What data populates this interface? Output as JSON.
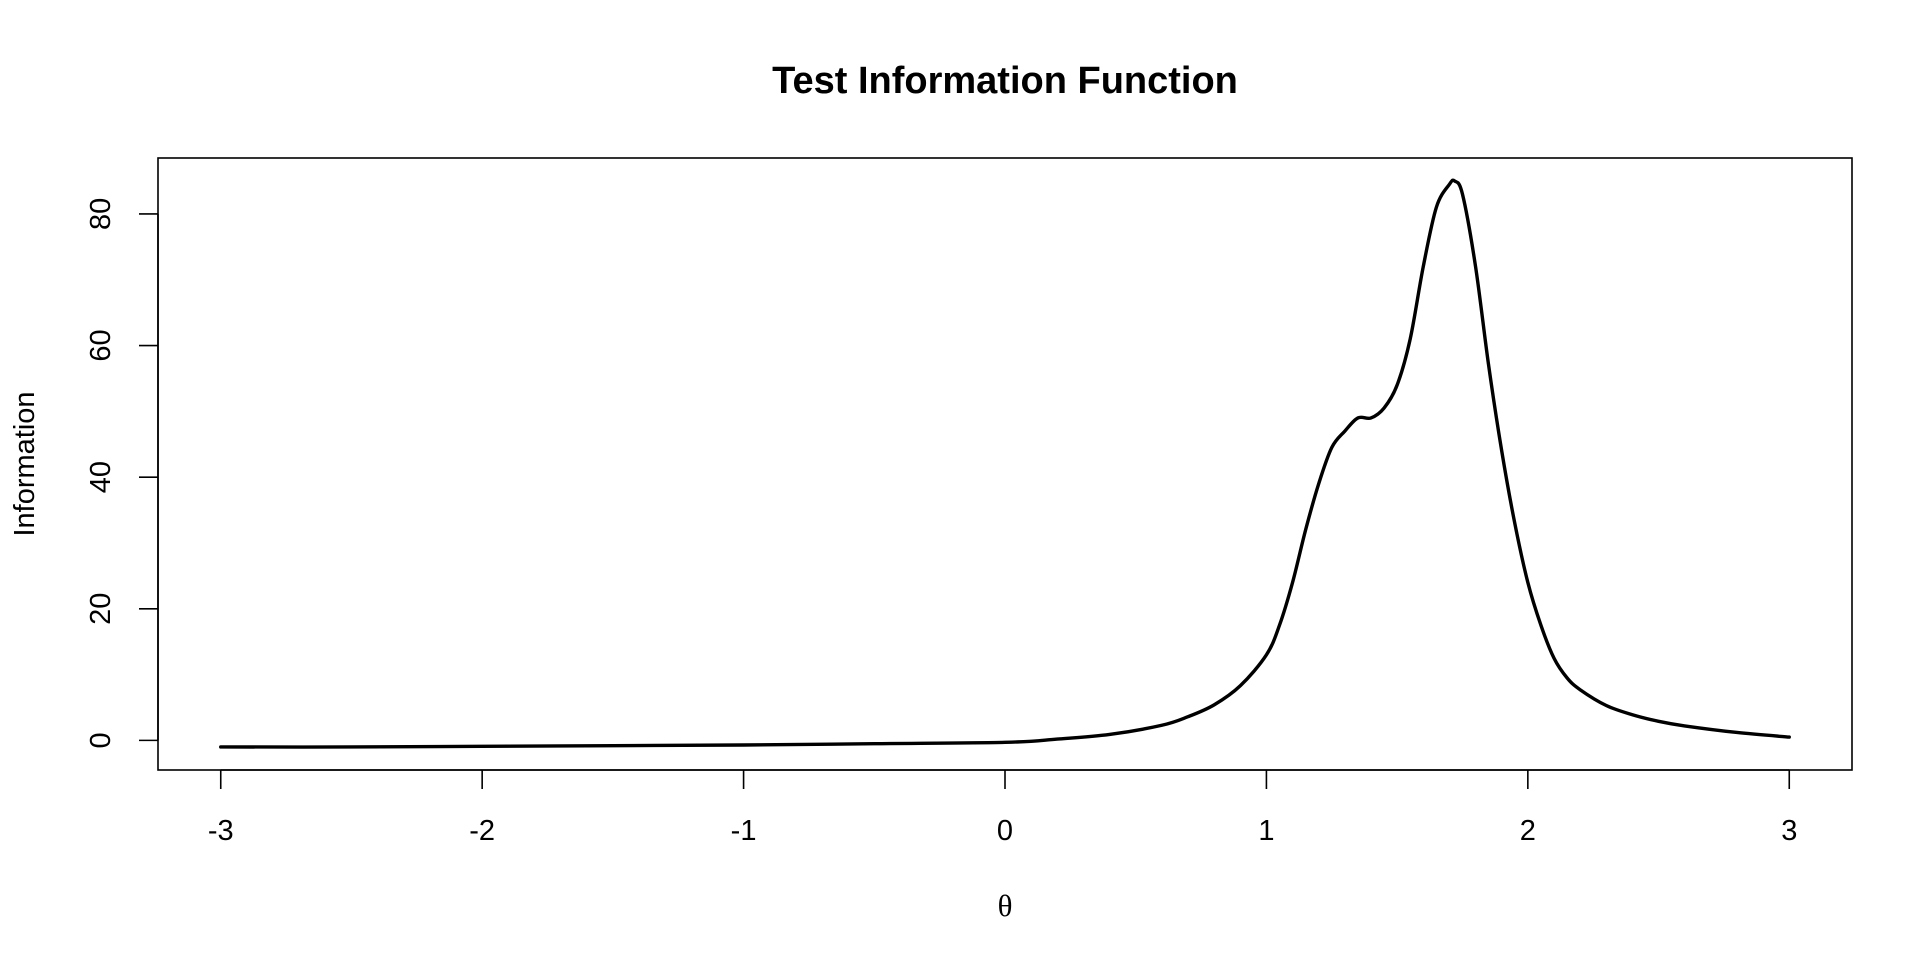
{
  "chart_data": {
    "type": "line",
    "title": "Test Information Function",
    "xlabel": "θ",
    "ylabel": "Information",
    "xlim": [
      -3.24,
      3.24
    ],
    "ylim": [
      -4.5,
      88.5
    ],
    "x_ticks": [
      -3,
      -2,
      -1,
      0,
      1,
      2,
      3
    ],
    "y_ticks": [
      0,
      20,
      40,
      60,
      80
    ],
    "grid": false,
    "legend": "none",
    "series": [
      {
        "color": "#000000",
        "x": [
          -3.0,
          -2.5,
          -2.0,
          -1.5,
          -1.0,
          -0.5,
          0.0,
          0.2,
          0.4,
          0.6,
          0.7,
          0.8,
          0.9,
          1.0,
          1.05,
          1.1,
          1.15,
          1.2,
          1.25,
          1.3,
          1.35,
          1.4,
          1.45,
          1.5,
          1.55,
          1.6,
          1.65,
          1.7,
          1.72,
          1.75,
          1.8,
          1.85,
          1.9,
          1.95,
          2.0,
          2.05,
          2.1,
          2.15,
          2.2,
          2.3,
          2.4,
          2.5,
          2.6,
          2.8,
          3.0
        ],
        "y": [
          -1.0,
          -1.0,
          -0.9,
          -0.8,
          -0.7,
          -0.5,
          -0.3,
          0.2,
          0.9,
          2.3,
          3.6,
          5.4,
          8.3,
          13.0,
          17.5,
          24.0,
          32.0,
          39.0,
          44.5,
          47.0,
          49.0,
          49.0,
          50.5,
          54.0,
          61.0,
          72.0,
          81.0,
          84.5,
          85.0,
          83.0,
          72.0,
          57.0,
          44.0,
          33.0,
          24.0,
          17.5,
          12.5,
          9.5,
          7.7,
          5.3,
          3.9,
          2.9,
          2.2,
          1.2,
          0.5
        ]
      }
    ]
  }
}
